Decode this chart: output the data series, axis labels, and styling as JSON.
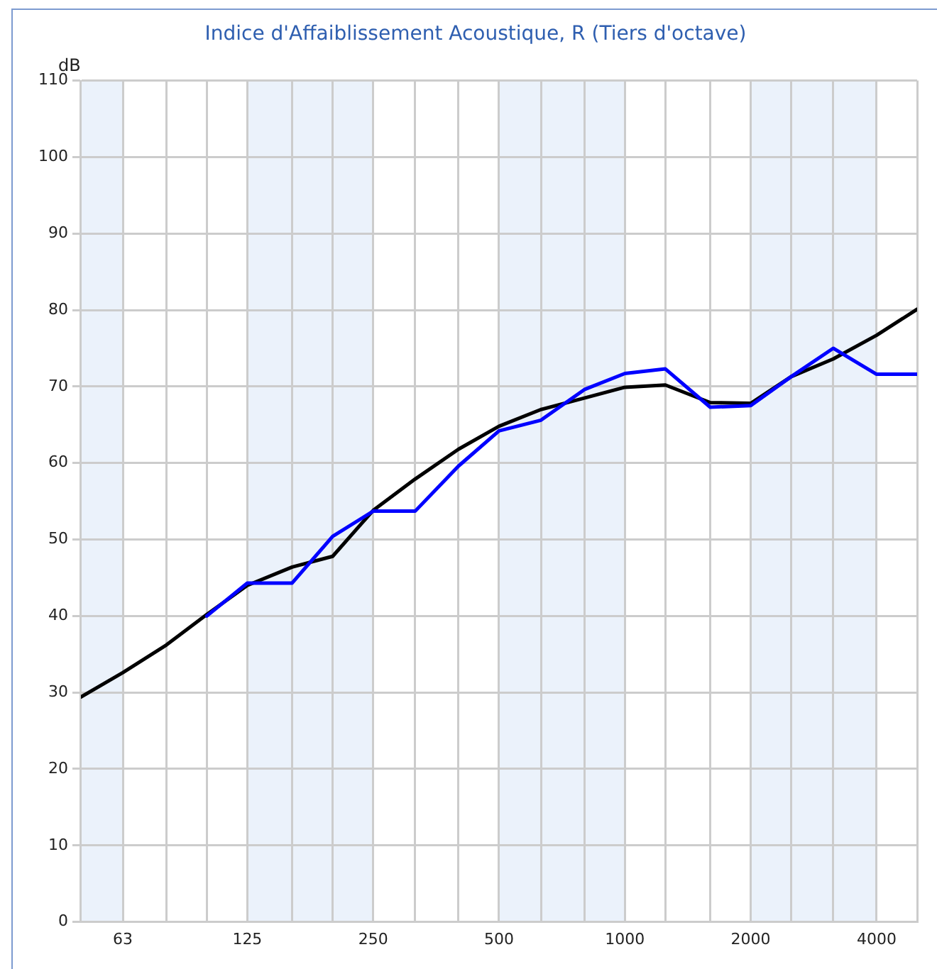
{
  "chart_data": {
    "type": "line",
    "title": "Indice d'Affaiblissement Acoustique, R (Tiers d'octave)",
    "ylabel": "dB",
    "x": [
      50,
      63,
      80,
      100,
      125,
      160,
      200,
      250,
      315,
      400,
      500,
      630,
      800,
      1000,
      1250,
      1600,
      2000,
      2500,
      3150,
      4000,
      5000
    ],
    "series": [
      {
        "color": "#0000ff",
        "values": [
          null,
          null,
          null,
          40.0,
          44.3,
          44.3,
          50.4,
          53.7,
          53.7,
          59.6,
          64.2,
          65.6,
          69.6,
          71.7,
          72.3,
          67.3,
          67.5,
          71.3,
          75.0,
          71.6,
          71.6
        ]
      },
      {
        "color": "#000000",
        "values": [
          29.4,
          32.6,
          36.2,
          40.2,
          44.0,
          46.4,
          47.8,
          53.8,
          57.9,
          61.8,
          64.8,
          67.0,
          68.5,
          69.9,
          70.2,
          67.9,
          67.8,
          71.3,
          73.6,
          76.7,
          80.1
        ]
      }
    ],
    "log": "x",
    "xlim": [
      50,
      5000
    ],
    "xticks": [
      {
        "value": 50,
        "label": null
      },
      63,
      {
        "value": 80,
        "label": null
      },
      {
        "value": 100,
        "label": null
      },
      125,
      {
        "value": 160,
        "label": null
      },
      {
        "value": 200,
        "label": null
      },
      250,
      {
        "value": 315,
        "label": null
      },
      {
        "value": 400,
        "label": null
      },
      500,
      {
        "value": 630,
        "label": null
      },
      {
        "value": 800,
        "label": null
      },
      1000,
      {
        "value": 1250,
        "label": null
      },
      {
        "value": 1600,
        "label": null
      },
      2000,
      {
        "value": 2500,
        "label": null
      },
      {
        "value": 3150,
        "label": null
      },
      4000,
      {
        "value": 5000,
        "label": null
      }
    ],
    "ylim": [
      0,
      110
    ],
    "yticks": [
      0,
      10,
      20,
      30,
      40,
      50,
      60,
      70,
      80,
      90,
      100,
      110
    ],
    "bands": [
      {
        "axis": "x",
        "from": 50,
        "to": 63,
        "color": "#ebf2fb"
      },
      {
        "axis": "x",
        "from": 125,
        "to": 250,
        "color": "#ebf2fb"
      },
      {
        "axis": "x",
        "from": 500,
        "to": 1000,
        "color": "#ebf2fb"
      },
      {
        "axis": "x",
        "from": 2000,
        "to": 4000,
        "color": "#ebf2fb"
      }
    ],
    "grid": true,
    "marker": "none",
    "line_style": "solid"
  }
}
